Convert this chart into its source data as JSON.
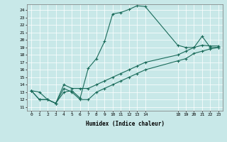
{
  "xlabel": "Humidex (Indice chaleur)",
  "bg_color": "#c8e8e8",
  "line_color": "#1a6b5a",
  "xlim": [
    -0.5,
    23.5
  ],
  "ylim": [
    10.5,
    24.8
  ],
  "xticks": [
    0,
    1,
    2,
    3,
    4,
    5,
    6,
    7,
    8,
    9,
    10,
    11,
    12,
    13,
    14,
    18,
    19,
    20,
    21,
    22,
    23
  ],
  "yticks": [
    11,
    12,
    13,
    14,
    15,
    16,
    17,
    18,
    19,
    20,
    21,
    22,
    23,
    24
  ],
  "line1_x": [
    0,
    1,
    2,
    3,
    4,
    5,
    6,
    7,
    8,
    9,
    10,
    11,
    12,
    13,
    14,
    18,
    19,
    20,
    21,
    22,
    23
  ],
  "line1_y": [
    13.2,
    13.0,
    12.0,
    11.5,
    13.0,
    13.2,
    12.2,
    16.2,
    17.5,
    19.8,
    23.5,
    23.7,
    24.1,
    24.6,
    24.5,
    19.3,
    19.0,
    19.0,
    20.5,
    19.0,
    19.0
  ],
  "line2_x": [
    0,
    1,
    2,
    3,
    4,
    5,
    6,
    7,
    8,
    9,
    10,
    11,
    12,
    13,
    14,
    18,
    19,
    20,
    21,
    22,
    23
  ],
  "line2_y": [
    13.2,
    12.0,
    12.0,
    11.5,
    14.0,
    13.5,
    13.5,
    13.5,
    14.0,
    14.5,
    15.0,
    15.5,
    16.0,
    16.5,
    17.0,
    18.0,
    18.5,
    19.0,
    19.3,
    19.2,
    19.2
  ],
  "line3_x": [
    0,
    1,
    2,
    3,
    4,
    5,
    6,
    7,
    8,
    9,
    10,
    11,
    12,
    13,
    14,
    18,
    19,
    20,
    21,
    22,
    23
  ],
  "line3_y": [
    13.2,
    12.0,
    12.0,
    11.5,
    13.5,
    13.0,
    12.0,
    12.0,
    13.0,
    13.5,
    14.0,
    14.5,
    15.0,
    15.5,
    16.0,
    17.2,
    17.5,
    18.2,
    18.5,
    18.8,
    19.0
  ]
}
